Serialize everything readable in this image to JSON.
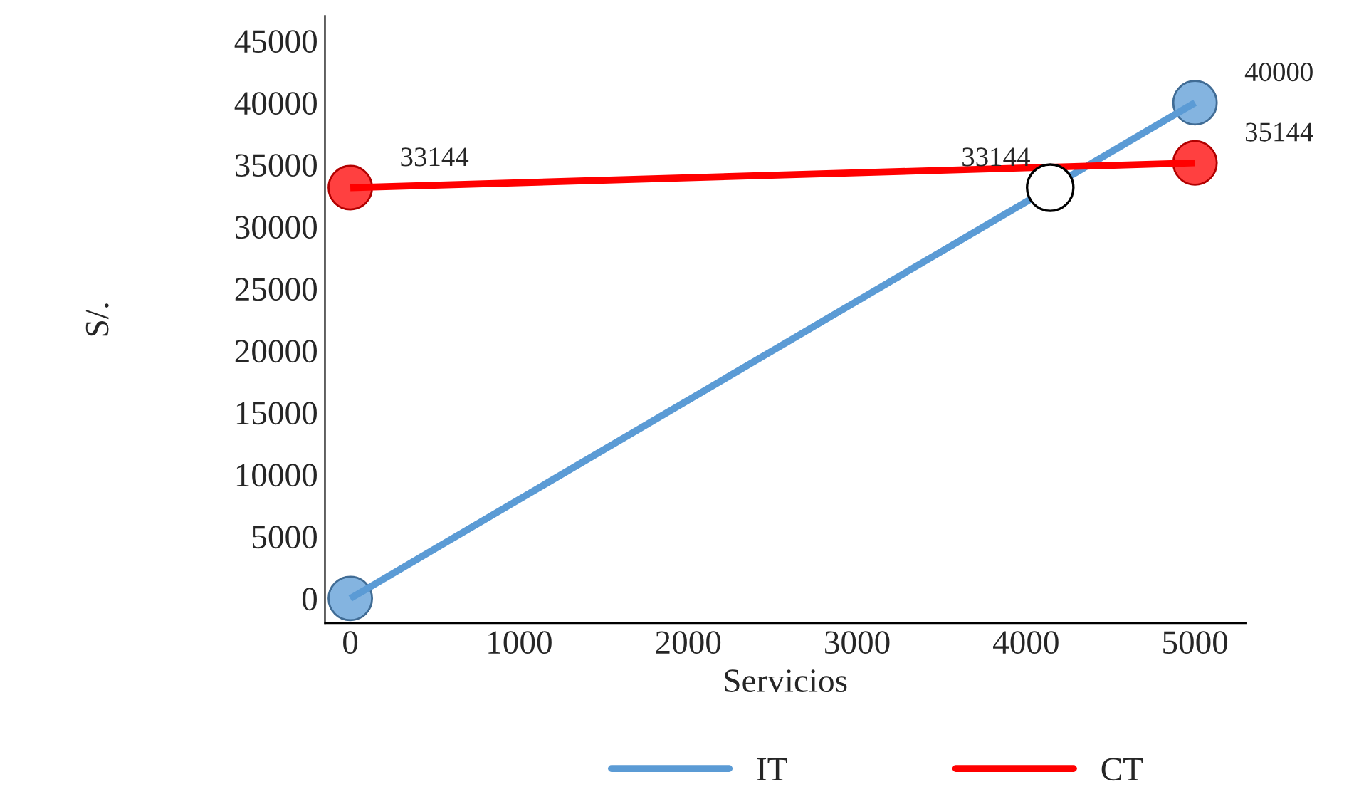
{
  "chart_data": {
    "type": "line",
    "xlabel": "Servicios",
    "ylabel": "S/.",
    "x": [
      0,
      5000
    ],
    "xlim": [
      -150,
      5300
    ],
    "xticks": [
      0,
      1000,
      2000,
      3000,
      4000,
      5000
    ],
    "ylim": [
      -2000,
      47000
    ],
    "yticks": [
      0,
      5000,
      10000,
      15000,
      20000,
      25000,
      30000,
      35000,
      40000,
      45000
    ],
    "marker": "circle",
    "legend": "bottom",
    "grid": false,
    "series": [
      {
        "name": "IT",
        "color": "#5b9bd5",
        "values": [
          0,
          40000
        ],
        "value_labels": [
          null,
          "40000"
        ]
      },
      {
        "name": "CT",
        "color": "#ff0000",
        "values": [
          33144,
          35144
        ],
        "value_labels": [
          "33144",
          "35144"
        ]
      },
      {
        "type": "scatter",
        "color": "#ffffff",
        "x": [
          4143
        ],
        "values": [
          33144
        ],
        "value_labels": [
          "33144"
        ]
      }
    ]
  }
}
